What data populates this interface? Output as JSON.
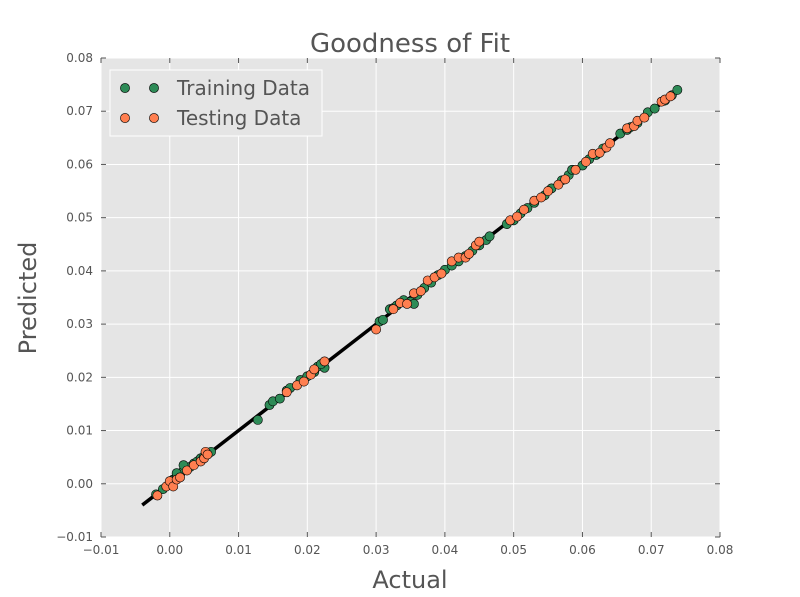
{
  "chart_data": {
    "type": "scatter",
    "title": "Goodness of Fit",
    "xlabel": "Actual",
    "ylabel": "Predicted",
    "xlim": [
      -0.01,
      0.08
    ],
    "ylim": [
      -0.01,
      0.08
    ],
    "xticks": [
      "−0.01",
      "0.00",
      "0.01",
      "0.02",
      "0.03",
      "0.04",
      "0.05",
      "0.06",
      "0.07",
      "0.08"
    ],
    "yticks": [
      "−0.01",
      "0.00",
      "0.01",
      "0.02",
      "0.03",
      "0.04",
      "0.05",
      "0.06",
      "0.07",
      "0.08"
    ],
    "grid": true,
    "legend": "top-left",
    "background": "#e5e5e5",
    "fit_line": {
      "x": [
        -0.004,
        0.0735
      ],
      "y": [
        -0.004,
        0.0735
      ],
      "color": "#000000"
    },
    "series": [
      {
        "name": "Training Data",
        "color": "#2e8b57",
        "points": [
          [
            -0.002,
            -0.002
          ],
          [
            -0.001,
            -0.001
          ],
          [
            0.0,
            0.0
          ],
          [
            0.0005,
            0.0008
          ],
          [
            0.001,
            0.0012
          ],
          [
            0.0015,
            0.0018
          ],
          [
            0.002,
            0.0025
          ],
          [
            0.0025,
            0.003
          ],
          [
            0.003,
            0.0032
          ],
          [
            0.0035,
            0.0038
          ],
          [
            0.004,
            0.0042
          ],
          [
            0.0045,
            0.0048
          ],
          [
            0.005,
            0.0052
          ],
          [
            0.0055,
            0.0058
          ],
          [
            0.006,
            0.006
          ],
          [
            0.002,
            0.0035
          ],
          [
            0.001,
            0.002
          ],
          [
            0.0128,
            0.012
          ],
          [
            0.0145,
            0.0148
          ],
          [
            0.015,
            0.0155
          ],
          [
            0.016,
            0.016
          ],
          [
            0.017,
            0.0175
          ],
          [
            0.0175,
            0.018
          ],
          [
            0.019,
            0.0195
          ],
          [
            0.02,
            0.0202
          ],
          [
            0.021,
            0.021
          ],
          [
            0.0215,
            0.022
          ],
          [
            0.0225,
            0.0218
          ],
          [
            0.022,
            0.0225
          ],
          [
            0.0305,
            0.0305
          ],
          [
            0.031,
            0.0308
          ],
          [
            0.032,
            0.0328
          ],
          [
            0.0325,
            0.033
          ],
          [
            0.033,
            0.0335
          ],
          [
            0.034,
            0.0345
          ],
          [
            0.035,
            0.0342
          ],
          [
            0.0355,
            0.0338
          ],
          [
            0.036,
            0.0355
          ],
          [
            0.037,
            0.0368
          ],
          [
            0.038,
            0.0378
          ],
          [
            0.039,
            0.0392
          ],
          [
            0.04,
            0.0402
          ],
          [
            0.041,
            0.041
          ],
          [
            0.042,
            0.0418
          ],
          [
            0.043,
            0.0428
          ],
          [
            0.044,
            0.0438
          ],
          [
            0.045,
            0.0448
          ],
          [
            0.046,
            0.0458
          ],
          [
            0.0465,
            0.0465
          ],
          [
            0.049,
            0.0488
          ],
          [
            0.05,
            0.0495
          ],
          [
            0.051,
            0.0508
          ],
          [
            0.052,
            0.0518
          ],
          [
            0.053,
            0.0528
          ],
          [
            0.0545,
            0.0542
          ],
          [
            0.0555,
            0.0555
          ],
          [
            0.057,
            0.057
          ],
          [
            0.058,
            0.058
          ],
          [
            0.0585,
            0.059
          ],
          [
            0.06,
            0.0598
          ],
          [
            0.061,
            0.061
          ],
          [
            0.062,
            0.0618
          ],
          [
            0.063,
            0.063
          ],
          [
            0.0655,
            0.0658
          ],
          [
            0.0665,
            0.0665
          ],
          [
            0.067,
            0.067
          ],
          [
            0.068,
            0.0678
          ],
          [
            0.0695,
            0.0698
          ],
          [
            0.0705,
            0.0705
          ],
          [
            0.072,
            0.072
          ],
          [
            0.073,
            0.073
          ],
          [
            0.0738,
            0.074
          ]
        ]
      },
      {
        "name": "Testing Data",
        "color": "#ff7f50",
        "points": [
          [
            -0.0018,
            -0.0022
          ],
          [
            -0.0005,
            -0.0005
          ],
          [
            0.0,
            0.0005
          ],
          [
            0.0005,
            -0.0005
          ],
          [
            0.001,
            0.0008
          ],
          [
            0.0015,
            0.0012
          ],
          [
            0.0025,
            0.0025
          ],
          [
            0.0035,
            0.0035
          ],
          [
            0.0045,
            0.0042
          ],
          [
            0.005,
            0.0048
          ],
          [
            0.0052,
            0.006
          ],
          [
            0.0055,
            0.0055
          ],
          [
            0.017,
            0.0172
          ],
          [
            0.0185,
            0.0185
          ],
          [
            0.0195,
            0.0192
          ],
          [
            0.0205,
            0.0205
          ],
          [
            0.021,
            0.0215
          ],
          [
            0.0225,
            0.023
          ],
          [
            0.03,
            0.029
          ],
          [
            0.0325,
            0.0328
          ],
          [
            0.0335,
            0.034
          ],
          [
            0.0345,
            0.0338
          ],
          [
            0.0355,
            0.0358
          ],
          [
            0.0365,
            0.0362
          ],
          [
            0.0375,
            0.0382
          ],
          [
            0.0385,
            0.0388
          ],
          [
            0.0395,
            0.0395
          ],
          [
            0.041,
            0.0418
          ],
          [
            0.042,
            0.0425
          ],
          [
            0.043,
            0.0425
          ],
          [
            0.0435,
            0.0432
          ],
          [
            0.0445,
            0.0448
          ],
          [
            0.045,
            0.0455
          ],
          [
            0.0495,
            0.0495
          ],
          [
            0.0505,
            0.0502
          ],
          [
            0.0515,
            0.0515
          ],
          [
            0.053,
            0.0532
          ],
          [
            0.054,
            0.0538
          ],
          [
            0.055,
            0.055
          ],
          [
            0.0565,
            0.0562
          ],
          [
            0.0575,
            0.0572
          ],
          [
            0.059,
            0.059
          ],
          [
            0.0605,
            0.0605
          ],
          [
            0.0615,
            0.062
          ],
          [
            0.0625,
            0.0622
          ],
          [
            0.0635,
            0.0632
          ],
          [
            0.064,
            0.064
          ],
          [
            0.0665,
            0.0668
          ],
          [
            0.0675,
            0.0672
          ],
          [
            0.068,
            0.0682
          ],
          [
            0.069,
            0.0688
          ],
          [
            0.0715,
            0.0718
          ],
          [
            0.072,
            0.0722
          ],
          [
            0.0728,
            0.0728
          ]
        ]
      }
    ]
  }
}
